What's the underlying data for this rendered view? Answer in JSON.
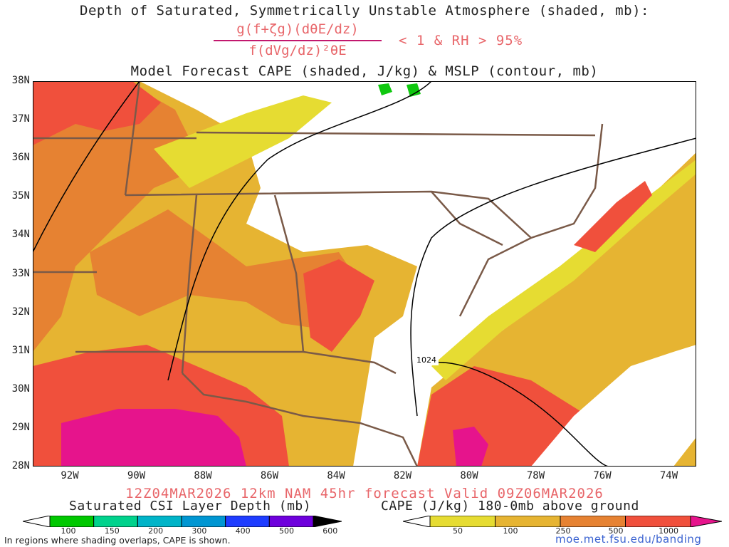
{
  "title_line1": "Depth of Saturated, Symmetrically Unstable Atmosphere (shaded, mb):",
  "formula": {
    "numerator": "g(f+ζg)(dθE/dz)",
    "denominator": "f(dVg/dz)²θE",
    "condition": "< 1 & RH > 95%"
  },
  "title_line3": "Model Forecast CAPE (shaded, J/kg) & MSLP (contour, mb)",
  "valid_line": "12Z04MAR2026 12km NAM 45hr forecast Valid 09Z06MAR2026",
  "map": {
    "lat_labels": [
      "38N",
      "37N",
      "36N",
      "35N",
      "34N",
      "33N",
      "32N",
      "31N",
      "30N",
      "29N",
      "28N"
    ],
    "lon_labels": [
      "92W",
      "90W",
      "88W",
      "86W",
      "84W",
      "82W",
      "80W",
      "78W",
      "76W",
      "74W"
    ],
    "isobar_label": "1024",
    "colors": {
      "cape_50": "#e6dc32",
      "cape_100": "#e6b432",
      "cape_250": "#e68232",
      "cape_500": "#f0503c",
      "cape_1000": "#e6148c",
      "csi_green": "#10c810",
      "state_lines": "#7a5a48",
      "isobars": "#000000"
    }
  },
  "colorbar_csi": {
    "label": "Saturated CSI Layer Depth (mb)",
    "ticks": [
      "100",
      "150",
      "200",
      "300",
      "400",
      "500",
      "600"
    ],
    "colors": [
      "#00c800",
      "#00d28c",
      "#00b4c8",
      "#0096d2",
      "#1e3cff",
      "#6e00dc",
      "#000000"
    ]
  },
  "colorbar_cape": {
    "label": "CAPE (J/kg) 180-0mb above ground",
    "ticks": [
      "50",
      "100",
      "250",
      "500",
      "1000"
    ],
    "colors": [
      "#e6dc32",
      "#e6b432",
      "#e68232",
      "#f0503c",
      "#e6148c"
    ]
  },
  "footnote": "In regions where shading overlaps, CAPE is shown.",
  "url": "moe.met.fsu.edu/banding"
}
